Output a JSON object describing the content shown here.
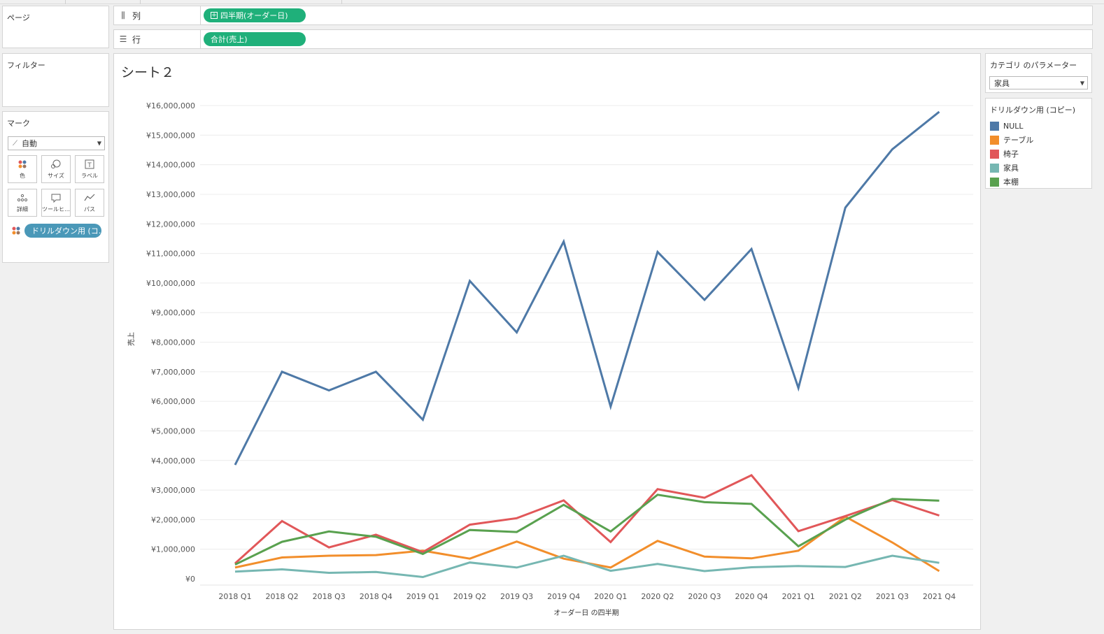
{
  "panels": {
    "pages_title": "ページ",
    "filters_title": "フィルター",
    "marks_title": "マーク",
    "mark_type": "自動",
    "mark_buttons": [
      {
        "label": "色",
        "icon": "color-icon"
      },
      {
        "label": "サイズ",
        "icon": "size-icon"
      },
      {
        "label": "ラベル",
        "icon": "label-icon"
      },
      {
        "label": "詳細",
        "icon": "detail-icon"
      },
      {
        "label": "ツールヒ…",
        "icon": "tooltip-icon"
      },
      {
        "label": "パス",
        "icon": "path-icon"
      }
    ],
    "marks_pill": "ドリルダウン用 (コ..."
  },
  "shelves": {
    "columns_label": "列",
    "columns_pill": "四半期(オーダー日)",
    "rows_label": "行",
    "rows_pill": "合計(売上)"
  },
  "view": {
    "title": "シート２"
  },
  "parameter": {
    "title": "カテゴリ のパラメーター",
    "value": "家具"
  },
  "legend": {
    "title": "ドリルダウン用 (コピー)",
    "items": [
      {
        "label": "NULL",
        "color": "#4e79a7"
      },
      {
        "label": "テーブル",
        "color": "#f28e2b"
      },
      {
        "label": "椅子",
        "color": "#e15759"
      },
      {
        "label": "家具",
        "color": "#76b7b2"
      },
      {
        "label": "本棚",
        "color": "#59a14f"
      }
    ]
  },
  "chart_data": {
    "type": "line",
    "xlabel": "オーダー日 の四半期",
    "ylabel": "売上",
    "ylim": [
      0,
      16000000
    ],
    "y_ticks": [
      0,
      1000000,
      2000000,
      3000000,
      4000000,
      5000000,
      6000000,
      7000000,
      8000000,
      9000000,
      10000000,
      11000000,
      12000000,
      13000000,
      14000000,
      15000000,
      16000000
    ],
    "y_tick_labels": [
      "¥0",
      "¥1,000,000",
      "¥2,000,000",
      "¥3,000,000",
      "¥4,000,000",
      "¥5,000,000",
      "¥6,000,000",
      "¥7,000,000",
      "¥8,000,000",
      "¥9,000,000",
      "¥10,000,000",
      "¥11,000,000",
      "¥12,000,000",
      "¥13,000,000",
      "¥14,000,000",
      "¥15,000,000",
      "¥16,000,000"
    ],
    "grid": true,
    "categories": [
      "2018 Q1",
      "2018 Q2",
      "2018 Q3",
      "2018 Q4",
      "2019 Q1",
      "2019 Q2",
      "2019 Q3",
      "2019 Q4",
      "2020 Q1",
      "2020 Q2",
      "2020 Q3",
      "2020 Q4",
      "2021 Q1",
      "2021 Q2",
      "2021 Q3",
      "2021 Q4"
    ],
    "series": [
      {
        "name": "NULL",
        "color": "#4e79a7",
        "values": [
          3850000,
          7000000,
          6370000,
          7000000,
          5380000,
          10070000,
          8330000,
          11400000,
          5820000,
          11050000,
          9430000,
          11150000,
          6450000,
          12550000,
          14520000,
          15790000
        ]
      },
      {
        "name": "テーブル",
        "color": "#f28e2b",
        "values": [
          380000,
          720000,
          780000,
          800000,
          950000,
          680000,
          1260000,
          680000,
          380000,
          1280000,
          750000,
          690000,
          950000,
          2100000,
          1230000,
          260000
        ]
      },
      {
        "name": "椅子",
        "color": "#e15759",
        "values": [
          520000,
          1950000,
          1060000,
          1490000,
          900000,
          1830000,
          2050000,
          2650000,
          1240000,
          3030000,
          2740000,
          3500000,
          1610000,
          2120000,
          2660000,
          2140000
        ]
      },
      {
        "name": "家具",
        "color": "#76b7b2",
        "values": [
          240000,
          320000,
          200000,
          230000,
          60000,
          550000,
          380000,
          780000,
          270000,
          500000,
          260000,
          390000,
          430000,
          400000,
          780000,
          540000
        ]
      },
      {
        "name": "本棚",
        "color": "#59a14f",
        "values": [
          480000,
          1250000,
          1600000,
          1420000,
          840000,
          1650000,
          1580000,
          2500000,
          1600000,
          2840000,
          2590000,
          2530000,
          1100000,
          2000000,
          2700000,
          2640000
        ]
      }
    ]
  }
}
